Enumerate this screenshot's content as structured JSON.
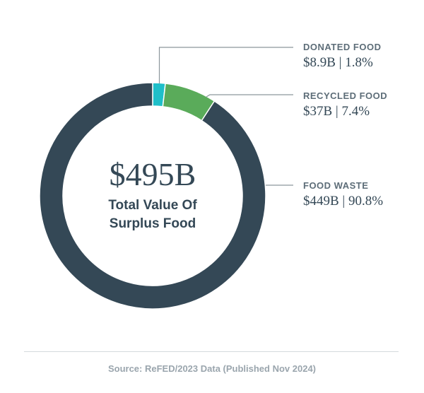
{
  "chart_data": {
    "type": "pie",
    "total_value": "$495B",
    "total_caption_lines": [
      "Total Value Of",
      "Surplus Food"
    ],
    "segments": [
      {
        "name": "DONATED FOOD",
        "value_label": "$8.9B | 1.8%",
        "value_billions": 8.9,
        "percent": 1.8,
        "color": "#1fbfc9"
      },
      {
        "name": "RECYCLED FOOD",
        "value_label": "$37B | 7.4%",
        "value_billions": 37,
        "percent": 7.4,
        "color": "#5aab5a"
      },
      {
        "name": "FOOD WASTE",
        "value_label": "$449B | 90.8%",
        "value_billions": 449,
        "percent": 90.8,
        "color": "#344856"
      }
    ]
  },
  "source": "Source: ReFED/2023 Data (Published Nov 2024)",
  "colors": {
    "leader_line": "#8c969c",
    "text_dark": "#344856",
    "divider": "#d4d9dc"
  }
}
